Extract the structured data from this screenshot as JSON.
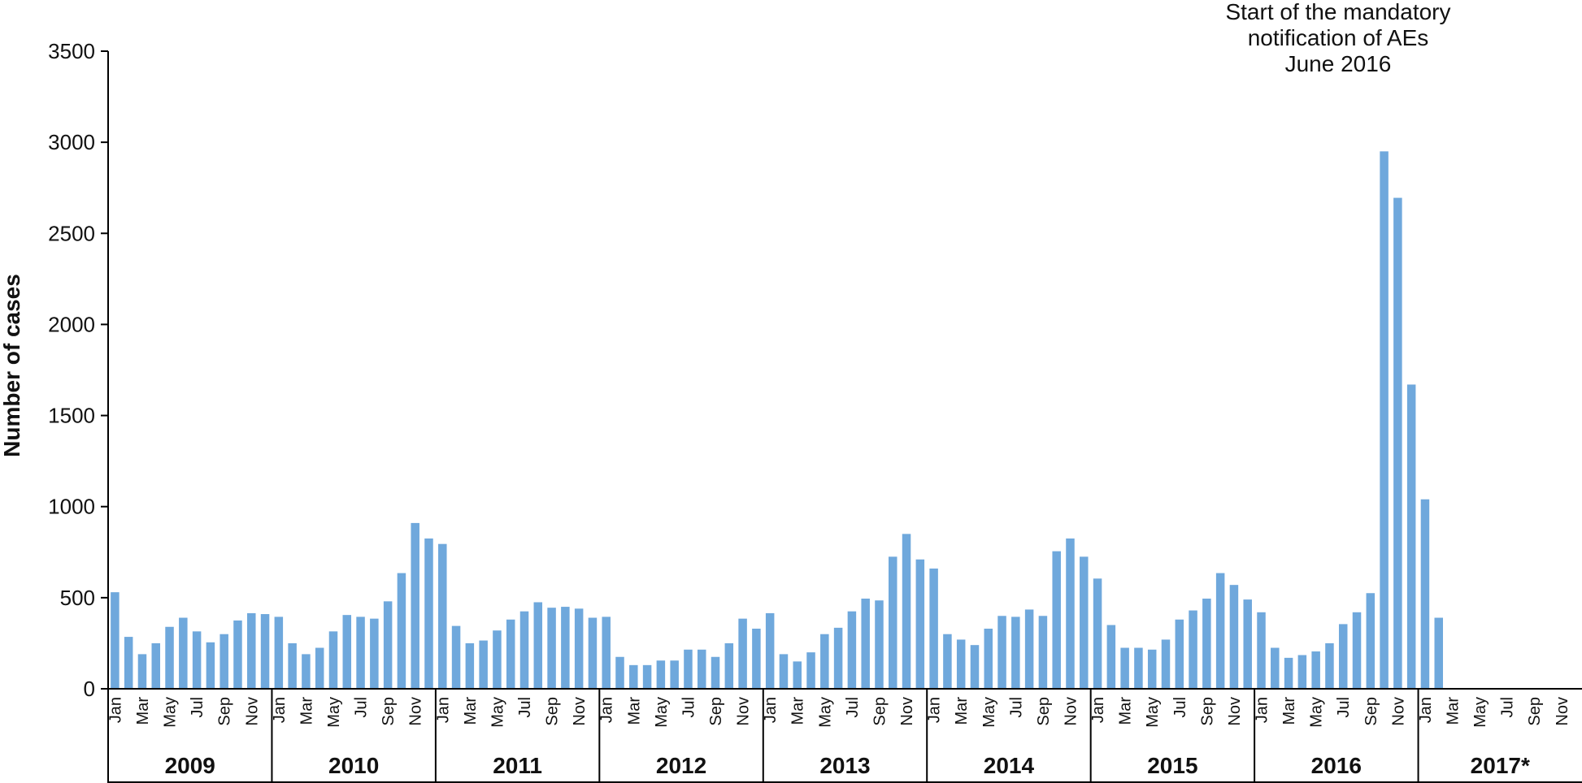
{
  "chart_data": {
    "type": "bar",
    "ylabel": "Number of cases",
    "xlabel": "",
    "ylim": [
      0,
      3500
    ],
    "yticks": [
      0,
      500,
      1000,
      1500,
      2000,
      2500,
      3000,
      3500
    ],
    "grid": false,
    "bar_color": "#6fa8dc",
    "annotation": [
      "Start of the mandatory",
      "notification of AEs",
      "June 2016"
    ],
    "month_tick_labels": [
      "Jan",
      "Mar",
      "May",
      "Jul",
      "Sep",
      "Nov"
    ],
    "groups": [
      {
        "year": "2009",
        "values": [
          530,
          285,
          190,
          250,
          340,
          390,
          315,
          255,
          300,
          375,
          415,
          410
        ]
      },
      {
        "year": "2010",
        "values": [
          395,
          250,
          190,
          225,
          315,
          405,
          395,
          385,
          480,
          635,
          910,
          825
        ]
      },
      {
        "year": "2011",
        "values": [
          795,
          345,
          250,
          265,
          320,
          380,
          425,
          475,
          445,
          450,
          440,
          390
        ]
      },
      {
        "year": "2012",
        "values": [
          395,
          175,
          130,
          130,
          155,
          155,
          215,
          215,
          175,
          250,
          385,
          330
        ]
      },
      {
        "year": "2013",
        "values": [
          415,
          190,
          150,
          200,
          300,
          335,
          425,
          495,
          485,
          725,
          850,
          710
        ]
      },
      {
        "year": "2014",
        "values": [
          660,
          300,
          270,
          240,
          330,
          400,
          395,
          435,
          400,
          755,
          825,
          725
        ]
      },
      {
        "year": "2015",
        "values": [
          605,
          350,
          225,
          225,
          215,
          270,
          380,
          430,
          495,
          635,
          570,
          490
        ]
      },
      {
        "year": "2016",
        "values": [
          420,
          225,
          170,
          185,
          205,
          250,
          355,
          420,
          525,
          2950,
          2695,
          1670
        ]
      },
      {
        "year": "2017*",
        "values": [
          1040,
          390
        ]
      }
    ]
  }
}
